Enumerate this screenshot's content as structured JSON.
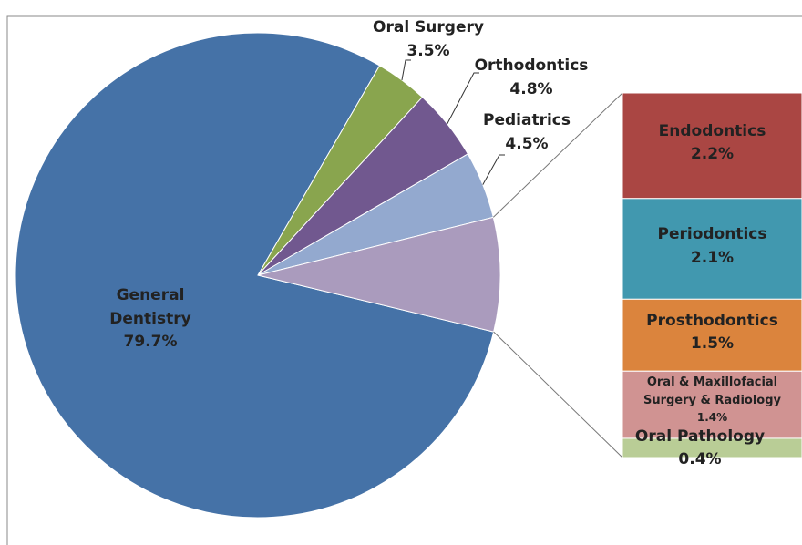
{
  "chart_data": {
    "type": "bar-of-pie",
    "pie": {
      "categories": [
        "General Dentistry",
        "Oral Surgery",
        "Orthodontics",
        "Pediatrics"
      ],
      "values": [
        79.7,
        3.5,
        4.8,
        4.5
      ],
      "value_labels": [
        "79.7%",
        "3.5%",
        "4.8%",
        "4.5%"
      ],
      "colors": [
        "#4572a7",
        "#89a54e",
        "#71588f",
        "#93a9cf"
      ],
      "other_color": "#aa9bbd"
    },
    "bar": {
      "categories": [
        "Endodontics",
        "Periodontics",
        "Prosthodontics",
        "Oral & Maxillofacial Surgery & Radiology",
        "Oral Pathology"
      ],
      "values": [
        2.2,
        2.1,
        1.5,
        1.4,
        0.4
      ],
      "value_labels": [
        "2.2%",
        "2.1%",
        "1.5%",
        "1.4%",
        "0.4%"
      ],
      "colors": [
        "#aa4643",
        "#4198af",
        "#db843d",
        "#d09392",
        "#b9cd96"
      ]
    }
  }
}
